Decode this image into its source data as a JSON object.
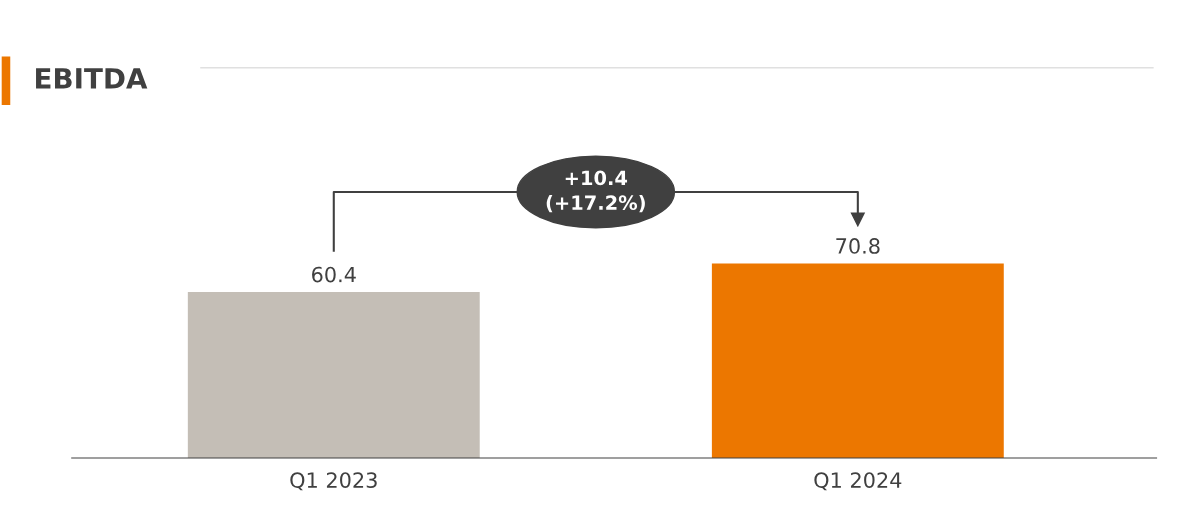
{
  "chart_data": {
    "type": "bar",
    "title": "EBITDA",
    "categories": [
      "Q1 2023",
      "Q1 2024"
    ],
    "values": [
      60.4,
      70.8
    ],
    "colors": [
      "#c4beb6",
      "#ec7700"
    ],
    "data_labels": true,
    "annotations": [
      "+10.4\n(+17.2%)"
    ],
    "tick_labels": "x",
    "grid": false
  }
}
